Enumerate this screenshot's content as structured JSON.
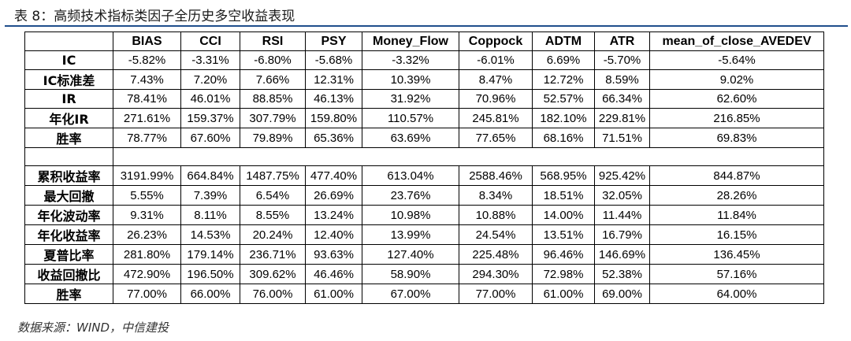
{
  "title": "表 8：高频技术指标类因子全历史多空收益表现",
  "source": "数据来源：WIND，中信建投",
  "columns": [
    "",
    "BIAS",
    "CCI",
    "RSI",
    "PSY",
    "Money_Flow",
    "Coppock",
    "ADTM",
    "ATR",
    "mean_of_close_AVEDEV"
  ],
  "rows_top": [
    {
      "label": "IC",
      "values": [
        "-5.82%",
        "-3.31%",
        "-6.80%",
        "-5.68%",
        "-3.32%",
        "-6.01%",
        "6.69%",
        "-5.70%",
        "-5.64%"
      ]
    },
    {
      "label": "IC标准差",
      "values": [
        "7.43%",
        "7.20%",
        "7.66%",
        "12.31%",
        "10.39%",
        "8.47%",
        "12.72%",
        "8.59%",
        "9.02%"
      ]
    },
    {
      "label": "IR",
      "values": [
        "78.41%",
        "46.01%",
        "88.85%",
        "46.13%",
        "31.92%",
        "70.96%",
        "52.57%",
        "66.34%",
        "62.60%"
      ]
    },
    {
      "label": "年化IR",
      "values": [
        "271.61%",
        "159.37%",
        "307.79%",
        "159.80%",
        "110.57%",
        "245.81%",
        "182.10%",
        "229.81%",
        "216.85%"
      ]
    },
    {
      "label": "胜率",
      "values": [
        "78.77%",
        "67.60%",
        "79.89%",
        "65.36%",
        "63.69%",
        "77.65%",
        "68.16%",
        "71.51%",
        "69.83%"
      ]
    }
  ],
  "rows_bottom": [
    {
      "label": "累积收益率",
      "values": [
        "3191.99%",
        "664.84%",
        "1487.75%",
        "477.40%",
        "613.04%",
        "2588.46%",
        "568.95%",
        "925.42%",
        "844.87%"
      ]
    },
    {
      "label": "最大回撤",
      "values": [
        "5.55%",
        "7.39%",
        "6.54%",
        "26.69%",
        "23.76%",
        "8.34%",
        "18.51%",
        "32.05%",
        "28.26%"
      ]
    },
    {
      "label": "年化波动率",
      "values": [
        "9.31%",
        "8.11%",
        "8.55%",
        "13.24%",
        "10.98%",
        "10.88%",
        "14.00%",
        "11.44%",
        "11.84%"
      ]
    },
    {
      "label": "年化收益率",
      "values": [
        "26.23%",
        "14.53%",
        "20.24%",
        "12.40%",
        "13.99%",
        "24.54%",
        "13.51%",
        "16.79%",
        "16.15%"
      ]
    },
    {
      "label": "夏普比率",
      "values": [
        "281.80%",
        "179.14%",
        "236.71%",
        "93.63%",
        "127.40%",
        "225.48%",
        "96.46%",
        "146.69%",
        "136.45%"
      ]
    },
    {
      "label": "收益回撤比",
      "values": [
        "472.90%",
        "196.50%",
        "309.62%",
        "46.46%",
        "58.90%",
        "294.30%",
        "72.98%",
        "52.38%",
        "57.16%"
      ]
    },
    {
      "label": "胜率",
      "values": [
        "77.00%",
        "66.00%",
        "76.00%",
        "61.00%",
        "67.00%",
        "77.00%",
        "61.00%",
        "69.00%",
        "64.00%"
      ]
    }
  ]
}
